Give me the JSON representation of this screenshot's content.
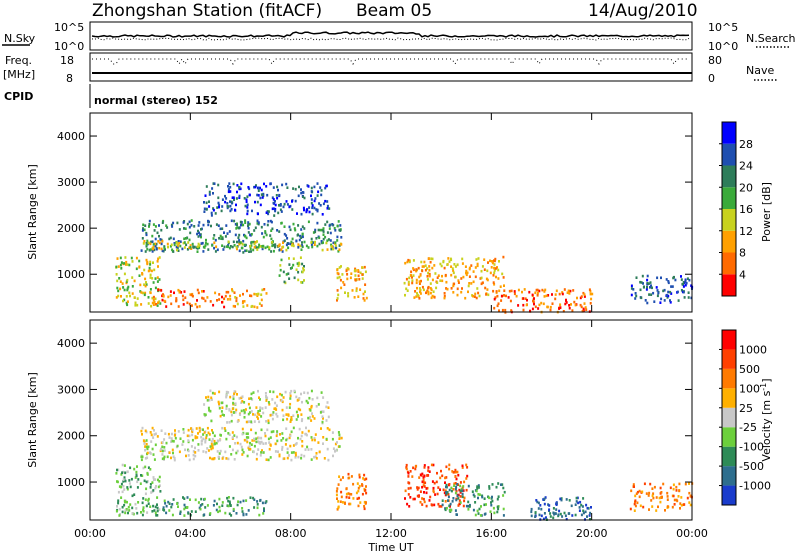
{
  "header": {
    "station": "Zhongshan Station (fitACF)",
    "beam": "Beam 05",
    "date": "14/Aug/2010"
  },
  "top_panels": {
    "nsky_label": "N.Sky",
    "nsky_ticks": [
      "10^5",
      "10^0"
    ],
    "nsearch_label": "N.Search",
    "nsearch_ticks": [
      "10^5",
      "10^0"
    ],
    "freq_label": "Freq.",
    "freq_unit": "[MHz]",
    "freq_ticks": [
      "18",
      "8"
    ],
    "nave_label": "Nave",
    "nave_ticks": [
      "80",
      "0"
    ],
    "cpid_label": "CPID",
    "cpid_text": "normal (stereo) 152"
  },
  "chart_data": [
    {
      "type": "heatmap",
      "name": "power",
      "xlabel": "",
      "ylabel": "Slant Range [km]",
      "x_ticks": [
        "00:00",
        "04:00",
        "08:00",
        "12:00",
        "16:00",
        "20:00",
        "00:00"
      ],
      "x_range_hours": [
        0,
        24
      ],
      "y_ticks": [
        "1000",
        "2000",
        "3000",
        "4000"
      ],
      "y_range_km": [
        180,
        4500
      ],
      "colorbar": {
        "label": "Power [dB]",
        "ticks": [
          "4",
          "8",
          "12",
          "16",
          "20",
          "24",
          "28"
        ],
        "colors": [
          "#0000ff",
          "#1f4fb0",
          "#2e7d5a",
          "#3aaa3a",
          "#c8d21e",
          "#ffa000",
          "#ff6a00",
          "#ff0000"
        ]
      },
      "echo_regions": [
        {
          "t": [
            1.0,
            2.8
          ],
          "r": [
            300,
            1400
          ],
          "level": 4
        },
        {
          "t": [
            2.5,
            5.5
          ],
          "r": [
            300,
            700
          ],
          "level": 6
        },
        {
          "t": [
            5.5,
            7.0
          ],
          "r": [
            300,
            700
          ],
          "level": 5
        },
        {
          "t": [
            2.0,
            10.0
          ],
          "r": [
            1500,
            2200
          ],
          "level": 2
        },
        {
          "t": [
            2.0,
            10.0
          ],
          "r": [
            1550,
            1750
          ],
          "level": 4
        },
        {
          "t": [
            4.5,
            9.5
          ],
          "r": [
            2300,
            3000
          ],
          "level": 1
        },
        {
          "t": [
            7.5,
            8.5
          ],
          "r": [
            800,
            1400
          ],
          "level": 3
        },
        {
          "t": [
            9.8,
            11.0
          ],
          "r": [
            400,
            1200
          ],
          "level": 5
        },
        {
          "t": [
            12.5,
            16.5
          ],
          "r": [
            500,
            1400
          ],
          "level": 5
        },
        {
          "t": [
            16.0,
            20.0
          ],
          "r": [
            200,
            700
          ],
          "level": 6
        },
        {
          "t": [
            21.5,
            24.0
          ],
          "r": [
            400,
            1000
          ],
          "level": 1
        }
      ]
    },
    {
      "type": "heatmap",
      "name": "velocity",
      "xlabel": "Time UT",
      "ylabel": "Slant Range [km]",
      "x_ticks": [
        "00:00",
        "04:00",
        "08:00",
        "12:00",
        "16:00",
        "20:00",
        "00:00"
      ],
      "x_range_hours": [
        0,
        24
      ],
      "y_ticks": [
        "1000",
        "2000",
        "3000",
        "4000"
      ],
      "y_range_km": [
        180,
        4500
      ],
      "colorbar": {
        "label": "Velocity [m s",
        "label_exponent": "-1",
        "ticks": [
          "1000",
          "500",
          "100",
          "25",
          "-25",
          "-100",
          "-500",
          "-1000"
        ],
        "colors": [
          "#1a3ccc",
          "#2e6e8e",
          "#2e8b57",
          "#6ccf3c",
          "#c8c8c8",
          "#ffb000",
          "#ff7a00",
          "#ff4000",
          "#ff0000"
        ]
      },
      "echo_regions": [
        {
          "t": [
            1.0,
            2.8
          ],
          "r": [
            300,
            1400
          ],
          "level": 5
        },
        {
          "t": [
            2.5,
            7.0
          ],
          "r": [
            300,
            700
          ],
          "level": 6
        },
        {
          "t": [
            2.0,
            10.0
          ],
          "r": [
            1500,
            2200
          ],
          "level": 4
        },
        {
          "t": [
            4.5,
            9.5
          ],
          "r": [
            2300,
            3000
          ],
          "level": 4
        },
        {
          "t": [
            9.8,
            11.0
          ],
          "r": [
            400,
            1200
          ],
          "level": 2
        },
        {
          "t": [
            12.5,
            15.0
          ],
          "r": [
            500,
            1400
          ],
          "level": 1
        },
        {
          "t": [
            14.0,
            16.5
          ],
          "r": [
            300,
            1000
          ],
          "level": 6
        },
        {
          "t": [
            17.5,
            20.0
          ],
          "r": [
            200,
            700
          ],
          "level": 7
        },
        {
          "t": [
            21.5,
            24.0
          ],
          "r": [
            400,
            1000
          ],
          "level": 2
        }
      ]
    }
  ]
}
